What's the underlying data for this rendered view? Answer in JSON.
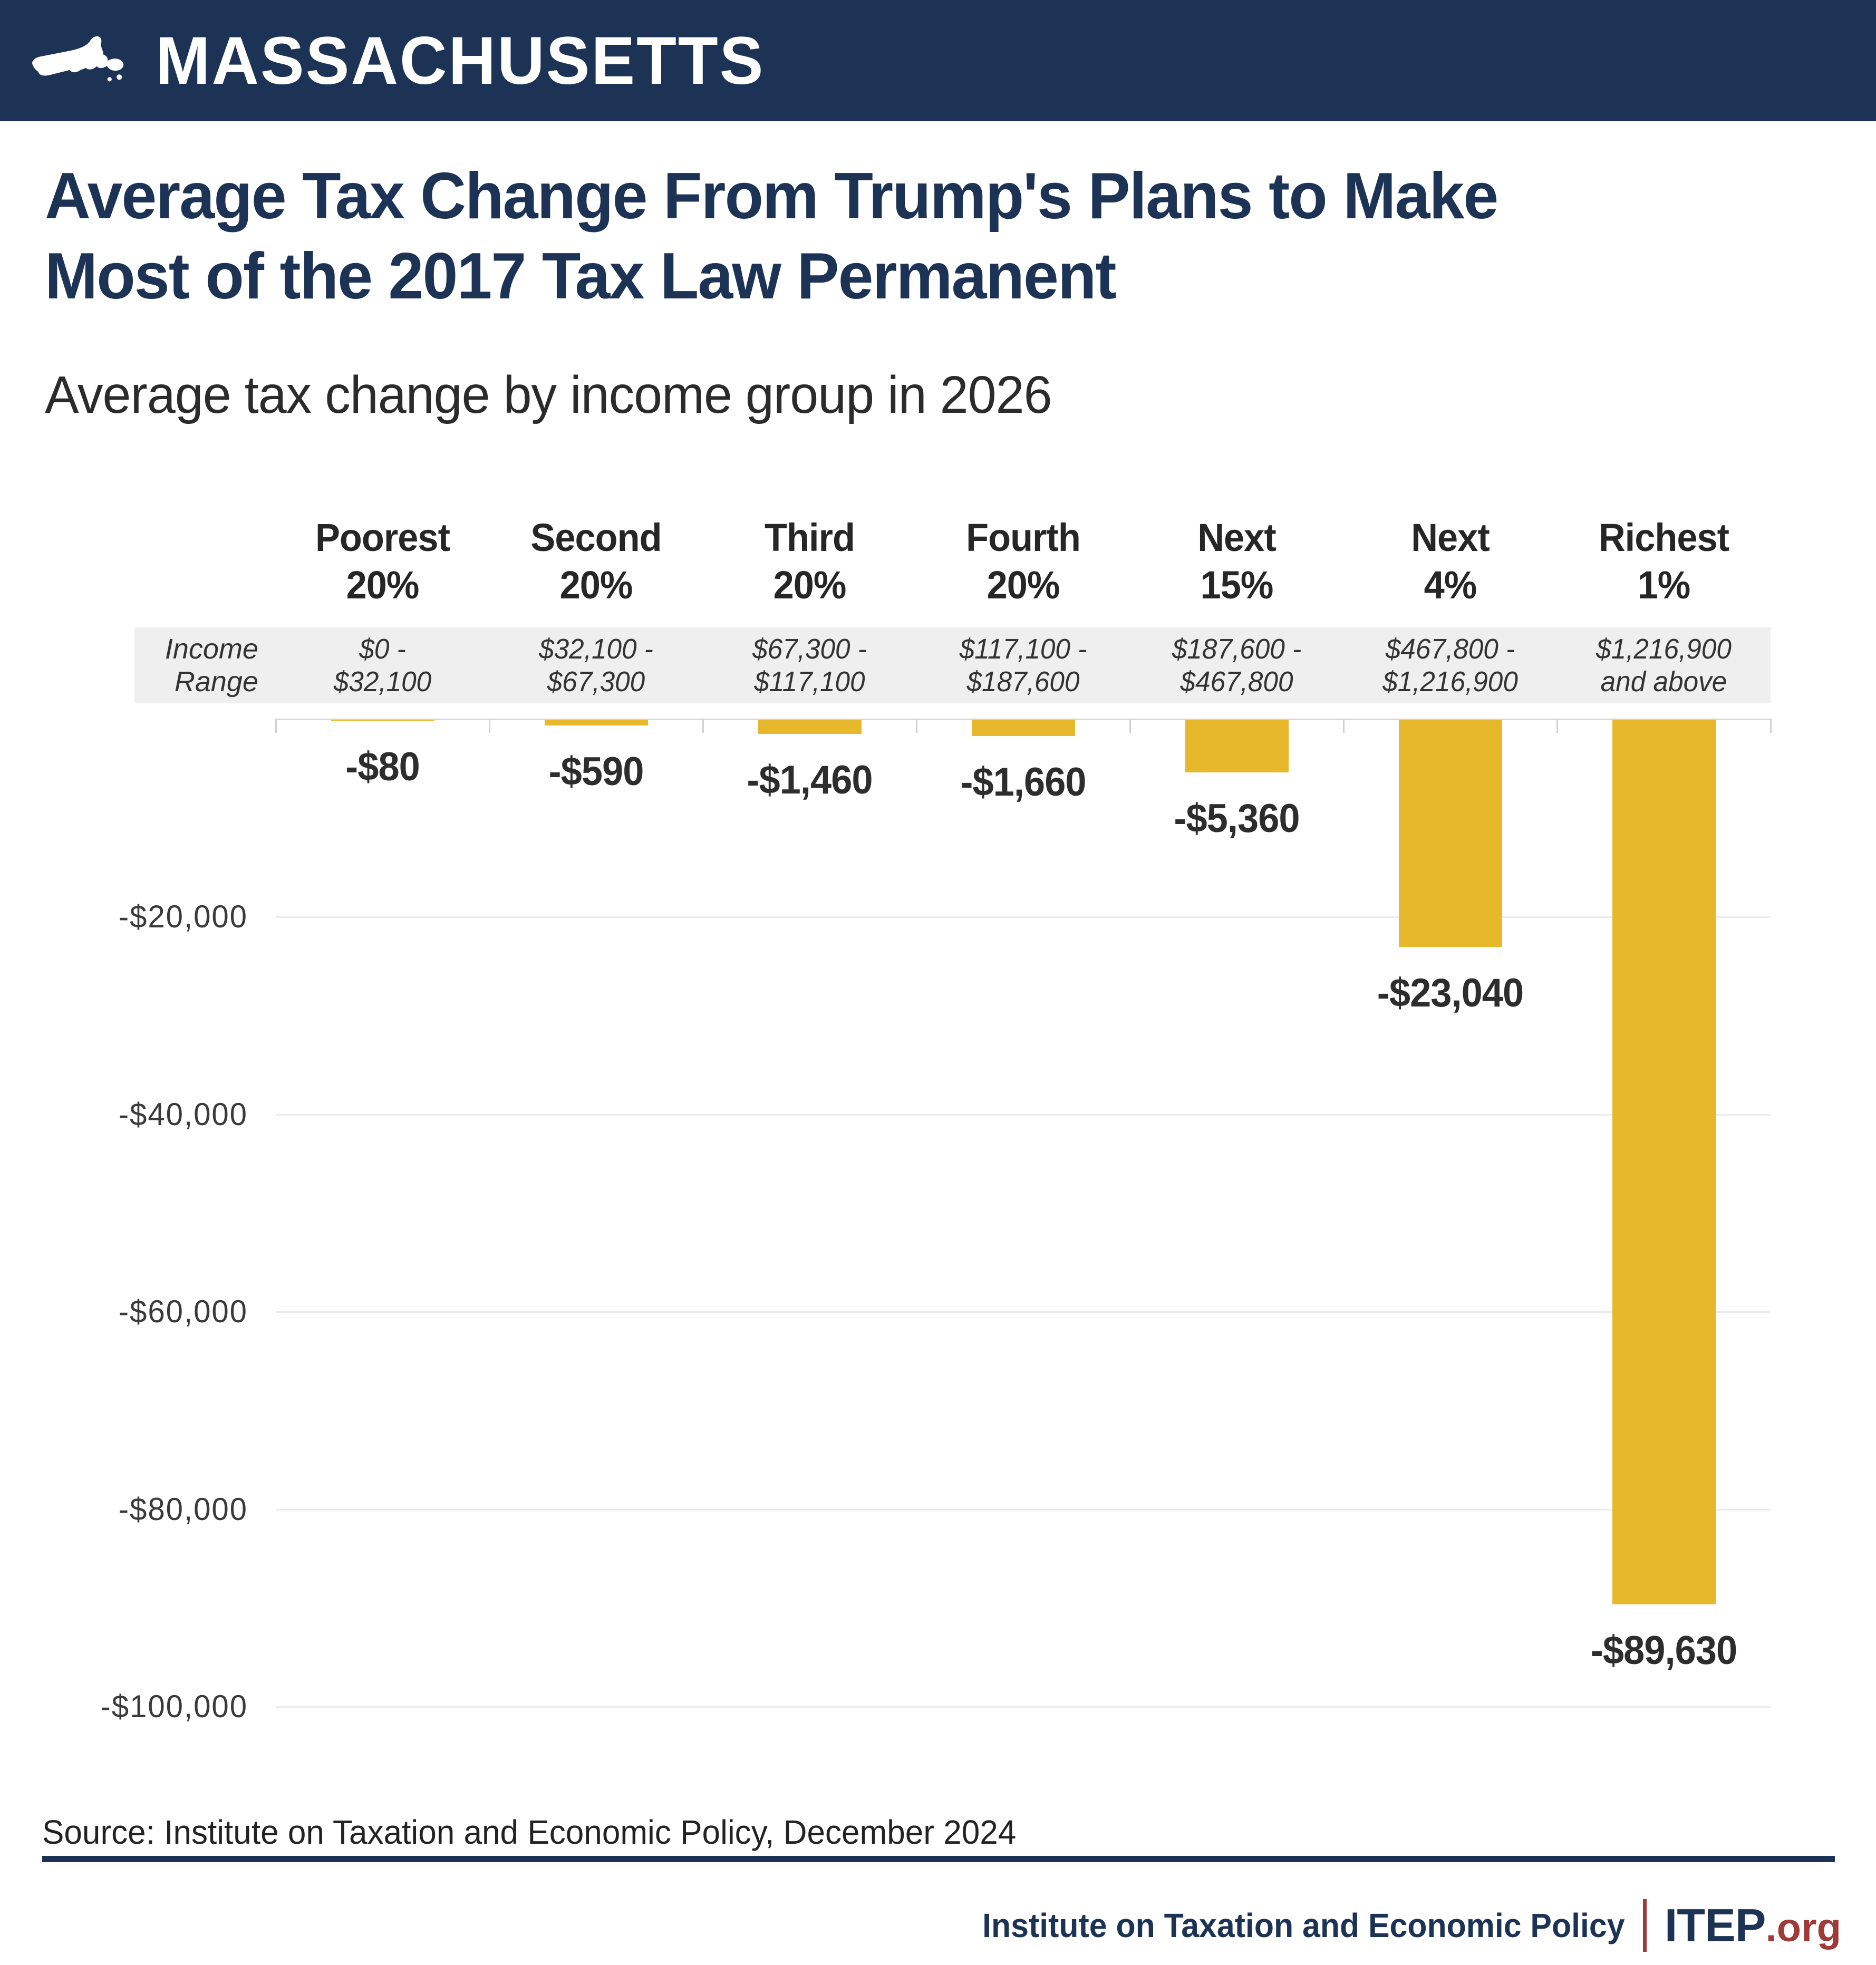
{
  "banner": {
    "state_name": "MASSACHUSETTS"
  },
  "title": {
    "line1": "Average Tax Change From Trump's Plans to Make",
    "line2": "Most of the 2017 Tax Law Permanent"
  },
  "subtitle": "Average tax change by income group in 2026",
  "chart_data": {
    "type": "bar",
    "title": "Average Tax Change From Trump's Plans to Make Most of the 2017 Tax Law Permanent",
    "subtitle": "Average tax change by income group in 2026",
    "categories": [
      "Poorest 20%",
      "Second 20%",
      "Third 20%",
      "Fourth 20%",
      "Next 15%",
      "Next 4%",
      "Richest 1%"
    ],
    "series": [
      {
        "name": "Average tax change in 2026",
        "values": [
          -80,
          -590,
          -1460,
          -1660,
          -5360,
          -23040,
          -89630
        ]
      }
    ],
    "value_labels": [
      "-$80",
      "-$590",
      "-$1,460",
      "-$1,660",
      "-$5,360",
      "-$23,040",
      "-$89,630"
    ],
    "income_range_header": [
      "Income",
      "Range"
    ],
    "income_ranges": [
      [
        "$0 -",
        "$32,100"
      ],
      [
        "$32,100 -",
        "$67,300"
      ],
      [
        "$67,300 -",
        "$117,100"
      ],
      [
        "$117,100 -",
        "$187,600"
      ],
      [
        "$187,600 -",
        "$467,800"
      ],
      [
        "$467,800 -",
        "$1,216,900"
      ],
      [
        "$1,216,900",
        "and above"
      ]
    ],
    "y_axis": {
      "min": -100000,
      "max": 0,
      "ticks": [
        {
          "value": -20000,
          "label": "-$20,000"
        },
        {
          "value": -40000,
          "label": "-$40,000"
        },
        {
          "value": -60000,
          "label": "-$60,000"
        },
        {
          "value": -80000,
          "label": "-$80,000"
        },
        {
          "value": -100000,
          "label": "-$100,000"
        }
      ]
    },
    "bar_color": "#e8b82c",
    "grid": true,
    "legend_position": "none",
    "xlabel": "",
    "ylabel": ""
  },
  "footer": {
    "source": "Source: Institute on Taxation and Economic Policy, December 2024",
    "org_name": "Institute on Taxation and Economic Policy",
    "logo_text": "ITEP",
    "logo_suffix": ".org"
  },
  "colors": {
    "navy": "#1d3355",
    "gold": "#e8b82c",
    "brand_red": "#9e3a38",
    "strip_gray": "#efefef"
  }
}
